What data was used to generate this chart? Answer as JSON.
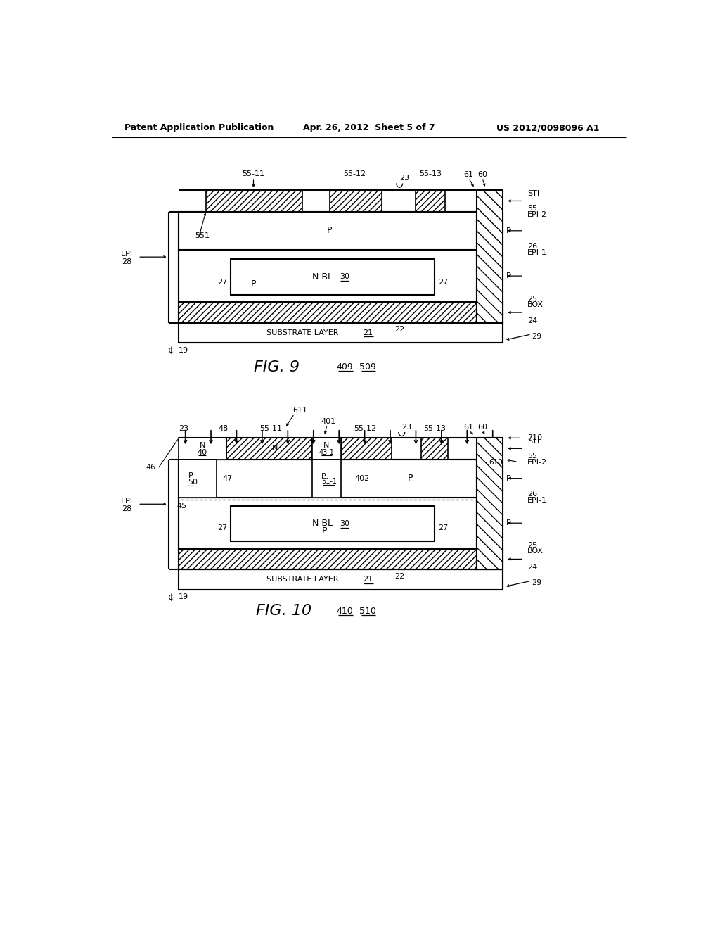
{
  "header_left": "Patent Application Publication",
  "header_center": "Apr. 26, 2012  Sheet 5 of 7",
  "header_right": "US 2012/0098096 A1",
  "bg_color": "#ffffff"
}
